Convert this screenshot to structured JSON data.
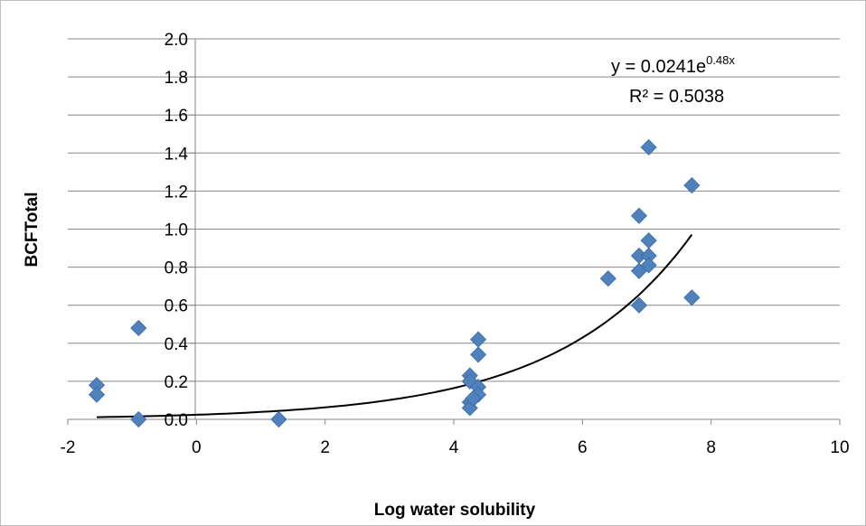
{
  "chart_data": {
    "type": "scatter",
    "xlabel": "Log water solubility",
    "ylabel": "BCFTotal",
    "xlim": [
      -2,
      10
    ],
    "ylim": [
      0,
      2.0
    ],
    "x_ticks": [
      "-2",
      "0",
      "2",
      "4",
      "6",
      "8",
      "10"
    ],
    "y_ticks": [
      "0.0",
      "0.2",
      "0.4",
      "0.6",
      "0.8",
      "1.0",
      "1.2",
      "1.4",
      "1.6",
      "1.8",
      "2.0"
    ],
    "grid": "horizontal",
    "marker_color": "#4F81BD",
    "trendline_color": "#000000",
    "points": [
      {
        "x": -1.55,
        "y": 0.18
      },
      {
        "x": -1.55,
        "y": 0.13
      },
      {
        "x": -0.9,
        "y": 0.48
      },
      {
        "x": -0.9,
        "y": 0.0
      },
      {
        "x": 1.28,
        "y": 0.0
      },
      {
        "x": 4.25,
        "y": 0.23
      },
      {
        "x": 4.25,
        "y": 0.2
      },
      {
        "x": 4.25,
        "y": 0.09
      },
      {
        "x": 4.25,
        "y": 0.06
      },
      {
        "x": 4.38,
        "y": 0.42
      },
      {
        "x": 4.38,
        "y": 0.34
      },
      {
        "x": 4.38,
        "y": 0.17
      },
      {
        "x": 4.38,
        "y": 0.13
      },
      {
        "x": 4.3,
        "y": 0.11
      },
      {
        "x": 6.4,
        "y": 0.74
      },
      {
        "x": 6.88,
        "y": 1.07
      },
      {
        "x": 6.88,
        "y": 0.86
      },
      {
        "x": 6.88,
        "y": 0.78
      },
      {
        "x": 6.88,
        "y": 0.6
      },
      {
        "x": 7.03,
        "y": 1.43
      },
      {
        "x": 7.03,
        "y": 0.94
      },
      {
        "x": 7.03,
        "y": 0.86
      },
      {
        "x": 7.03,
        "y": 0.81
      },
      {
        "x": 7.7,
        "y": 1.23
      },
      {
        "x": 7.7,
        "y": 0.64
      }
    ],
    "trendline": {
      "type": "exponential",
      "a": 0.0241,
      "b": 0.48,
      "x_range": [
        -1.55,
        7.7
      ],
      "equation_prefix": "y = 0.0241e",
      "equation_exponent": "0.48x",
      "r_squared_label": "R² = 0.5038"
    }
  }
}
